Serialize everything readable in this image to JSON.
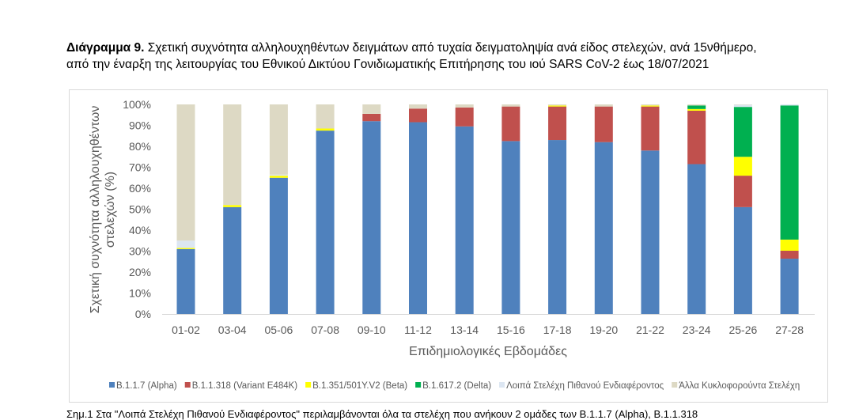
{
  "caption": {
    "bold": "Διάγραμμα 9.",
    "text": " Σχετική συχνότητα αλληλουχηθέντων δειγμάτων από τυχαία δειγματοληψία ανά είδος στελεχών, ανά 15νθήμερο, από την έναρξη της λειτουργίας του Εθνικού Δικτύου Γονιδιωματικής Επιτήρησης του ιού SARS CoV-2 έως 18/07/2021"
  },
  "note": "Σημ.1 Στα \"Λοιπά Στελέχη Πιθανού Ενδιαφέροντος\" περιλαμβάνονται όλα τα στελέχη που ανήκουν 2 ομάδες των B.1.1.7 (Alpha), B.1.1.318",
  "chart_data": {
    "type": "bar",
    "stacked": true,
    "xlabel": "Επιδημιολογικές Εβδομάδες",
    "ylabel": [
      "Σχετική συχνότητα αλληλουχηθέντων",
      "στελεχών (%)"
    ],
    "ylim": [
      0,
      100
    ],
    "yticks": [
      "0%",
      "10%",
      "20%",
      "30%",
      "40%",
      "50%",
      "60%",
      "70%",
      "80%",
      "90%",
      "100%"
    ],
    "grid": false,
    "legend_position": "bottom",
    "categories": [
      "01-02",
      "03-04",
      "05-06",
      "07-08",
      "09-10",
      "11-12",
      "13-14",
      "15-16",
      "17-18",
      "19-20",
      "21-22",
      "23-24",
      "25-26",
      "27-28"
    ],
    "series": [
      {
        "name": "B.1.1.7 (Alpha)",
        "color": "#4f81bd",
        "values": [
          31,
          51,
          65,
          87.5,
          92,
          91.5,
          89.5,
          82.5,
          83,
          82,
          78,
          71.5,
          51,
          26.4
        ]
      },
      {
        "name": "B.1.1.318 (Variant E484K)",
        "color": "#c0504d",
        "values": [
          0,
          0,
          0,
          0,
          3.5,
          6.5,
          9,
          16.5,
          16,
          17,
          21,
          25.5,
          15,
          3.8
        ]
      },
      {
        "name": "B.1.351/501Y.V2 (Beta)",
        "color": "#ffff00",
        "values": [
          0.5,
          1,
          1,
          1,
          0,
          0,
          0,
          0,
          0.5,
          0,
          0.5,
          0.8,
          9,
          5.3
        ]
      },
      {
        "name": "B.1.617.2 (Delta)",
        "color": "#00b050",
        "values": [
          0,
          0,
          0,
          0,
          0,
          0,
          0,
          0,
          0,
          0,
          0,
          1.7,
          23.8,
          64
        ]
      },
      {
        "name": "Λοιπά Στελέχη Πιθανού Ενδιαφέροντος",
        "color": "#dce6f2",
        "values": [
          3.5,
          0,
          0.5,
          0,
          0,
          0,
          0,
          0,
          0,
          0,
          0,
          0,
          1,
          0.5
        ]
      },
      {
        "name": "Άλλα Κυκλοφορούντα Στελέχη",
        "color": "#ddd9c4",
        "values": [
          65,
          48,
          33.5,
          11.5,
          4.5,
          2,
          1.5,
          1,
          0.5,
          1,
          0.5,
          0.5,
          0.2,
          0
        ]
      }
    ]
  }
}
